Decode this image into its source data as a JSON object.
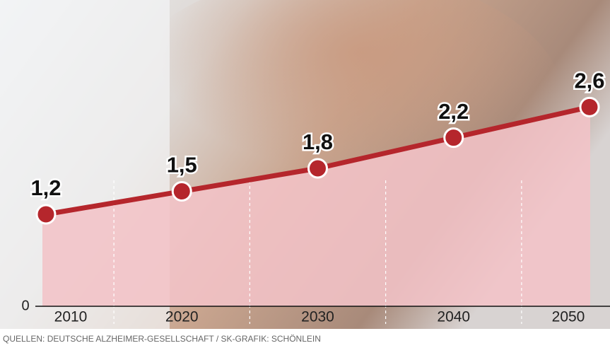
{
  "chart_data": {
    "type": "line",
    "categories": [
      "2010",
      "2020",
      "2030",
      "2040",
      "2050"
    ],
    "values": [
      1.2,
      1.5,
      1.8,
      2.2,
      2.6
    ],
    "value_labels": [
      "1,2",
      "1,5",
      "1,8",
      "2,2",
      "2,6"
    ],
    "color": "#b5262c",
    "area_color": "#f3c3c7",
    "ylim": [
      0,
      3
    ],
    "yticks": [
      0
    ],
    "source": "QUELLEN: DEUTSCHE ALZHEIMER-GESELLSCHAFT / SK-GRAFIK: SCHÖNLEIN"
  }
}
